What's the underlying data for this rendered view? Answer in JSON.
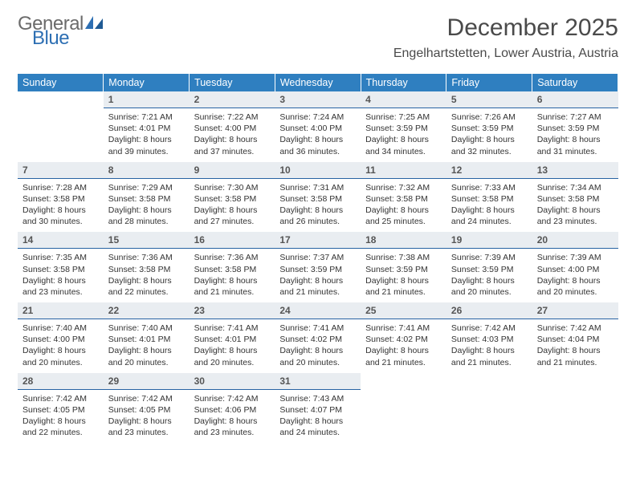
{
  "brand": {
    "general": "General",
    "blue": "Blue"
  },
  "title": "December 2025",
  "location": "Engelhartstetten, Lower Austria, Austria",
  "colors": {
    "header_bg": "#2f7fc0",
    "header_text": "#ffffff",
    "daynum_bg": "#e9edf1",
    "daynum_border": "#2863a3",
    "body_text": "#333333",
    "title_text": "#4a4a4a",
    "brand_gray": "#6b6b6b",
    "brand_blue": "#2d6fb3"
  },
  "weekdays": [
    "Sunday",
    "Monday",
    "Tuesday",
    "Wednesday",
    "Thursday",
    "Friday",
    "Saturday"
  ],
  "weeks": [
    [
      null,
      {
        "d": "1",
        "sr": "7:21 AM",
        "ss": "4:01 PM",
        "dl": "8 hours and 39 minutes."
      },
      {
        "d": "2",
        "sr": "7:22 AM",
        "ss": "4:00 PM",
        "dl": "8 hours and 37 minutes."
      },
      {
        "d": "3",
        "sr": "7:24 AM",
        "ss": "4:00 PM",
        "dl": "8 hours and 36 minutes."
      },
      {
        "d": "4",
        "sr": "7:25 AM",
        "ss": "3:59 PM",
        "dl": "8 hours and 34 minutes."
      },
      {
        "d": "5",
        "sr": "7:26 AM",
        "ss": "3:59 PM",
        "dl": "8 hours and 32 minutes."
      },
      {
        "d": "6",
        "sr": "7:27 AM",
        "ss": "3:59 PM",
        "dl": "8 hours and 31 minutes."
      }
    ],
    [
      {
        "d": "7",
        "sr": "7:28 AM",
        "ss": "3:58 PM",
        "dl": "8 hours and 30 minutes."
      },
      {
        "d": "8",
        "sr": "7:29 AM",
        "ss": "3:58 PM",
        "dl": "8 hours and 28 minutes."
      },
      {
        "d": "9",
        "sr": "7:30 AM",
        "ss": "3:58 PM",
        "dl": "8 hours and 27 minutes."
      },
      {
        "d": "10",
        "sr": "7:31 AM",
        "ss": "3:58 PM",
        "dl": "8 hours and 26 minutes."
      },
      {
        "d": "11",
        "sr": "7:32 AM",
        "ss": "3:58 PM",
        "dl": "8 hours and 25 minutes."
      },
      {
        "d": "12",
        "sr": "7:33 AM",
        "ss": "3:58 PM",
        "dl": "8 hours and 24 minutes."
      },
      {
        "d": "13",
        "sr": "7:34 AM",
        "ss": "3:58 PM",
        "dl": "8 hours and 23 minutes."
      }
    ],
    [
      {
        "d": "14",
        "sr": "7:35 AM",
        "ss": "3:58 PM",
        "dl": "8 hours and 23 minutes."
      },
      {
        "d": "15",
        "sr": "7:36 AM",
        "ss": "3:58 PM",
        "dl": "8 hours and 22 minutes."
      },
      {
        "d": "16",
        "sr": "7:36 AM",
        "ss": "3:58 PM",
        "dl": "8 hours and 21 minutes."
      },
      {
        "d": "17",
        "sr": "7:37 AM",
        "ss": "3:59 PM",
        "dl": "8 hours and 21 minutes."
      },
      {
        "d": "18",
        "sr": "7:38 AM",
        "ss": "3:59 PM",
        "dl": "8 hours and 21 minutes."
      },
      {
        "d": "19",
        "sr": "7:39 AM",
        "ss": "3:59 PM",
        "dl": "8 hours and 20 minutes."
      },
      {
        "d": "20",
        "sr": "7:39 AM",
        "ss": "4:00 PM",
        "dl": "8 hours and 20 minutes."
      }
    ],
    [
      {
        "d": "21",
        "sr": "7:40 AM",
        "ss": "4:00 PM",
        "dl": "8 hours and 20 minutes."
      },
      {
        "d": "22",
        "sr": "7:40 AM",
        "ss": "4:01 PM",
        "dl": "8 hours and 20 minutes."
      },
      {
        "d": "23",
        "sr": "7:41 AM",
        "ss": "4:01 PM",
        "dl": "8 hours and 20 minutes."
      },
      {
        "d": "24",
        "sr": "7:41 AM",
        "ss": "4:02 PM",
        "dl": "8 hours and 20 minutes."
      },
      {
        "d": "25",
        "sr": "7:41 AM",
        "ss": "4:02 PM",
        "dl": "8 hours and 21 minutes."
      },
      {
        "d": "26",
        "sr": "7:42 AM",
        "ss": "4:03 PM",
        "dl": "8 hours and 21 minutes."
      },
      {
        "d": "27",
        "sr": "7:42 AM",
        "ss": "4:04 PM",
        "dl": "8 hours and 21 minutes."
      }
    ],
    [
      {
        "d": "28",
        "sr": "7:42 AM",
        "ss": "4:05 PM",
        "dl": "8 hours and 22 minutes."
      },
      {
        "d": "29",
        "sr": "7:42 AM",
        "ss": "4:05 PM",
        "dl": "8 hours and 23 minutes."
      },
      {
        "d": "30",
        "sr": "7:42 AM",
        "ss": "4:06 PM",
        "dl": "8 hours and 23 minutes."
      },
      {
        "d": "31",
        "sr": "7:43 AM",
        "ss": "4:07 PM",
        "dl": "8 hours and 24 minutes."
      },
      null,
      null,
      null
    ]
  ],
  "labels": {
    "sunrise": "Sunrise:",
    "sunset": "Sunset:",
    "daylight": "Daylight:"
  }
}
